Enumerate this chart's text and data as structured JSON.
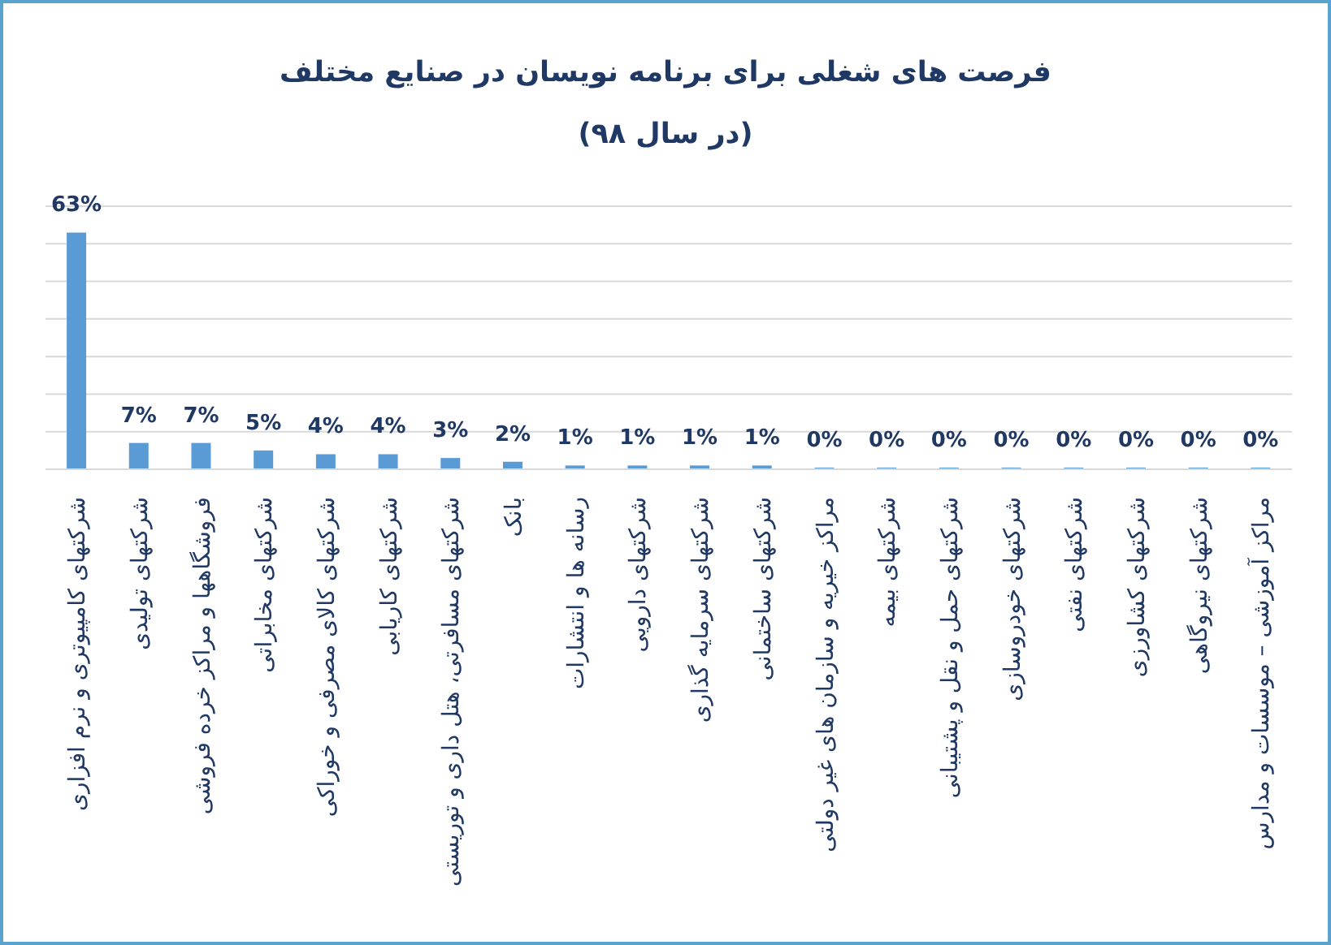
{
  "chart_data": {
    "type": "bar",
    "title": "فرصت های شغلی برای برنامه نویسان در صنایع مختلف",
    "subtitle": "(در سال ۹۸)",
    "categories": [
      "شرکتهای کامپیوتری و نرم افزاری",
      "شرکتهای تولیدی",
      "فروشگاهها و مراکز خرده فروشی",
      "شرکتهای مخابراتی",
      "شرکتهای کالای مصرفی و خوراکی",
      "شرکتهای کاریابی",
      "شرکتهای مسافرتی، هتل داری و توریستی",
      "بانک",
      "رسانه ها و انتشارات",
      "شرکتهای دارویی",
      "شرکتهای سرمایه گذاری",
      "شرکتهای ساختمانی",
      "مراکز خیریه و سازمان های غیر دولتی",
      "شرکتهای بیمه",
      "شرکتهای حمل و نقل و پشتیبانی",
      "شرکتهای خودروسازی",
      "شرکتهای نفتی",
      "شرکتهای کشاورزی",
      "شرکتهای نیروگاهی",
      "مراکز آموزشی – موسسات و مدارس"
    ],
    "values": [
      63,
      7,
      7,
      5,
      4,
      4,
      3,
      2,
      1,
      1,
      1,
      1,
      0,
      0,
      0,
      0,
      0,
      0,
      0,
      0
    ],
    "value_labels": [
      "63%",
      "7%",
      "7%",
      "5%",
      "4%",
      "4%",
      "3%",
      "2%",
      "1%",
      "1%",
      "1%",
      "1%",
      "0%",
      "0%",
      "0%",
      "0%",
      "0%",
      "0%",
      "0%",
      "0%"
    ],
    "color": "#5b9bd5",
    "ylim": [
      0,
      70
    ],
    "yticks": [
      0,
      10,
      20,
      30,
      40,
      50,
      60,
      70
    ],
    "tick_labels": "x",
    "grid": "y",
    "legend": false
  }
}
